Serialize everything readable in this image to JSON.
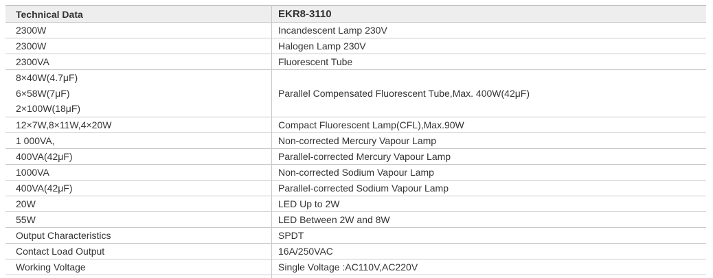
{
  "table": {
    "headers": [
      "Technical Data",
      "EKR8-3110"
    ],
    "rows": [
      {
        "value": [
          "2300W"
        ],
        "desc": "Incandescent Lamp 230V"
      },
      {
        "value": [
          "2300W"
        ],
        "desc": "Halogen Lamp 230V"
      },
      {
        "value": [
          "2300VA"
        ],
        "desc": "Fluorescent Tube"
      },
      {
        "value": [
          "8×40W(4.7μF)",
          "6×58W(7μF)",
          "2×100W(18μF)"
        ],
        "desc": "Parallel Compensated Fluorescent Tube,Max. 400W(42μF)"
      },
      {
        "value": [
          "12×7W,8×11W,4×20W"
        ],
        "desc": "Compact Fluorescent Lamp(CFL),Max.90W"
      },
      {
        "value": [
          "1 000VA,"
        ],
        "desc": "Non-corrected Mercury Vapour Lamp"
      },
      {
        "value": [
          "400VA(42μF)"
        ],
        "desc": "Parallel-corrected Mercury Vapour Lamp"
      },
      {
        "value": [
          "1000VA"
        ],
        "desc": "Non-corrected Sodium Vapour Lamp"
      },
      {
        "value": [
          "400VA(42μF)"
        ],
        "desc": "Parallel-corrected Sodium Vapour Lamp"
      },
      {
        "value": [
          "20W"
        ],
        "desc": "LED Up to 2W"
      },
      {
        "value": [
          "55W"
        ],
        "desc": "LED Between 2W and 8W"
      },
      {
        "value": [
          "Output Characteristics"
        ],
        "desc": "SPDT"
      },
      {
        "value": [
          "Contact Load Output"
        ],
        "desc": "16A/250VAC"
      },
      {
        "value": [
          "Working Voltage"
        ],
        "desc": "Single Voltage :AC110V,AC220V"
      }
    ]
  }
}
